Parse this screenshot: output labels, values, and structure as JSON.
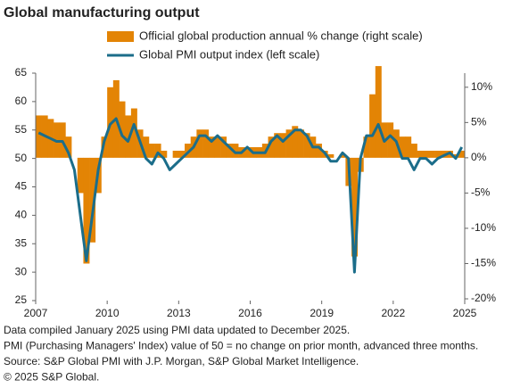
{
  "chart_data": {
    "type": "bar-line",
    "title": "Global manufacturing output",
    "x": [
      2007,
      2007.25,
      2007.5,
      2007.75,
      2008,
      2008.25,
      2008.5,
      2008.75,
      2009,
      2009.25,
      2009.5,
      2009.75,
      2010,
      2010.25,
      2010.5,
      2010.75,
      2011,
      2011.25,
      2011.5,
      2011.75,
      2012,
      2012.25,
      2012.5,
      2012.75,
      2013,
      2013.25,
      2013.5,
      2013.75,
      2014,
      2014.25,
      2014.5,
      2014.75,
      2015,
      2015.25,
      2015.5,
      2015.75,
      2016,
      2016.25,
      2016.5,
      2016.75,
      2017,
      2017.25,
      2017.5,
      2017.75,
      2018,
      2018.25,
      2018.5,
      2018.75,
      2019,
      2019.25,
      2019.5,
      2019.75,
      2020,
      2020.25,
      2020.5,
      2020.75,
      2021,
      2021.25,
      2021.5,
      2021.75,
      2022,
      2022.25,
      2022.5,
      2022.75,
      2023,
      2023.25,
      2023.5,
      2023.75,
      2024,
      2024.25,
      2024.5,
      2024.75
    ],
    "series": [
      {
        "name": "Official global production annual % change (right scale)",
        "color": "#e38405",
        "kind": "bar",
        "axis": "y2",
        "values": [
          6,
          6,
          5.5,
          5,
          5,
          3,
          0,
          -5,
          -15,
          -12,
          -5,
          3,
          10,
          11,
          8,
          6,
          7,
          4,
          3,
          2,
          2,
          1,
          0,
          1,
          1,
          2,
          3,
          4,
          4,
          3,
          3,
          3,
          2,
          2,
          1.5,
          1.5,
          1.5,
          1.5,
          2,
          3,
          3.5,
          3.5,
          4,
          4.5,
          4,
          3.5,
          3,
          2,
          1,
          0.5,
          0,
          0.5,
          -4,
          -14,
          -2,
          3,
          9,
          13,
          5,
          5,
          4,
          3,
          3,
          2,
          1,
          1,
          1,
          1,
          1,
          1,
          0.5,
          1
        ]
      },
      {
        "name": "Global PMI output index (left scale)",
        "color": "#1b6d8a",
        "kind": "line",
        "values": [
          54.5,
          54,
          53.5,
          53,
          53,
          51,
          48,
          40,
          32,
          40,
          48,
          53,
          56,
          57,
          54,
          53,
          56,
          53,
          50,
          49,
          51,
          50,
          48,
          49,
          50,
          51,
          52,
          54,
          54,
          53,
          54,
          53,
          52,
          51,
          51,
          52,
          51,
          51,
          51,
          53,
          54,
          53,
          54,
          55,
          55,
          54,
          52,
          52,
          51,
          49.5,
          49.5,
          51,
          50,
          30,
          50,
          54,
          54,
          56,
          53,
          54,
          53,
          50,
          50,
          48,
          50,
          50,
          49,
          50,
          50.5,
          51,
          50,
          52
        ]
      }
    ],
    "xlim": [
      2007,
      2025
    ],
    "xticks": [
      2007,
      2010,
      2013,
      2016,
      2019,
      2022,
      2025
    ],
    "ylim": [
      25,
      65
    ],
    "yticks": [
      25,
      30,
      35,
      40,
      45,
      50,
      55,
      60,
      65
    ],
    "y2lim": [
      -20.25,
      12
    ],
    "y2ticks": [
      {
        "value": 10,
        "label": "10%"
      },
      {
        "value": 5,
        "label": "5%"
      },
      {
        "value": 0,
        "label": "0%"
      },
      {
        "value": -5,
        "label": "-5%"
      },
      {
        "value": -10,
        "label": "-10%"
      },
      {
        "value": -15,
        "label": "-15%"
      },
      {
        "value": -20,
        "label": "-20%"
      }
    ],
    "notes": [
      "Data compiled January 2025 using PMI data updated to December 2025.",
      "PMI (Purchasing Managers' Index) value of 50 = no change on prior month, advanced three months.",
      "Source: S&P Global PMI with J.P. Morgan, S&P Global Market Intelligence.",
      "© 2025 S&P Global."
    ]
  }
}
